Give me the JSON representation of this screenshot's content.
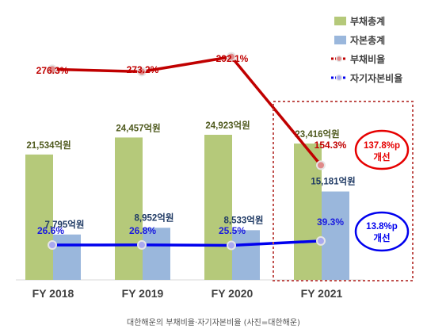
{
  "caption": "대한해운의 부채비율·자기자본비율 (사진=대한해운)",
  "chart_data": {
    "type": "bar",
    "categories": [
      "FY 2018",
      "FY 2019",
      "FY 2020",
      "FY 2021"
    ],
    "bar_unit": "억원",
    "series": [
      {
        "name": "부채총계",
        "kind": "bar",
        "color": "#b5c97a",
        "values": [
          21534,
          24457,
          24923,
          23416
        ],
        "labels": [
          "21,534억원",
          "24,457억원",
          "24,923억원",
          "23,416억원"
        ],
        "label_color": "#4f5a1e"
      },
      {
        "name": "자본총계",
        "kind": "bar",
        "color": "#9ab7dc",
        "values": [
          7795,
          8952,
          8533,
          15181
        ],
        "labels": [
          "7,795억원",
          "8,952억원",
          "8,533억원",
          "15,181억원"
        ],
        "label_color": "#1f3a64"
      },
      {
        "name": "부채비율",
        "kind": "line",
        "color": "#c00000",
        "values": [
          276.3,
          273.2,
          292.1,
          154.3
        ],
        "labels": [
          "276.3%",
          "273.2%",
          "292.1%",
          "154.3%"
        ]
      },
      {
        "name": "자기자본비율",
        "kind": "line",
        "color": "#0000ee",
        "values": [
          26.6,
          26.8,
          25.5,
          39.3
        ],
        "labels": [
          "26.6%",
          "26.8%",
          "25.5%",
          "39.3%"
        ]
      }
    ],
    "annotations": [
      {
        "line1": "137.8%p",
        "line2": "개선",
        "color": "#e60000"
      },
      {
        "line1": "13.8%p",
        "line2": "개선",
        "color": "#0000ee"
      }
    ],
    "highlight_category": "FY 2021",
    "highlight_color": "#c0504d",
    "legend_position": "top-right",
    "grid": false
  }
}
